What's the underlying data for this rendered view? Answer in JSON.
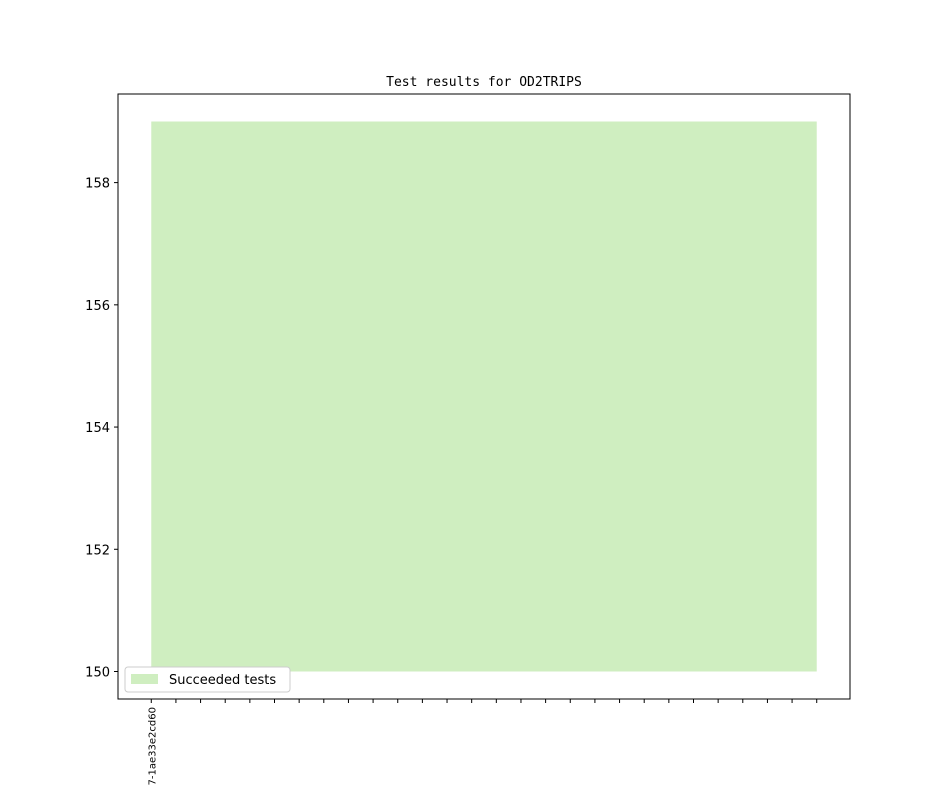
{
  "chart_data": {
    "type": "area",
    "title": "Test results for OD2TRIPS",
    "categories": [
      "7-1ae33e2cd60",
      null,
      null,
      null,
      null,
      null,
      null,
      null,
      null,
      null,
      null,
      null,
      null,
      null,
      null,
      null,
      null,
      null,
      null,
      null,
      null,
      null,
      null,
      null,
      null,
      null,
      null,
      null
    ],
    "series": [
      {
        "name": "Succeeded tests",
        "color": "#cfeec0",
        "base": [
          150,
          150,
          150,
          150,
          150,
          150,
          150,
          150,
          150,
          150,
          150,
          150,
          150,
          150,
          150,
          150,
          150,
          150,
          150,
          150,
          150,
          150,
          150,
          150,
          150,
          150,
          150,
          150
        ],
        "values": [
          159,
          159,
          159,
          159,
          159,
          159,
          159,
          159,
          159,
          159,
          159,
          159,
          159,
          159,
          159,
          159,
          159,
          159,
          159,
          159,
          159,
          159,
          159,
          159,
          159,
          159,
          159,
          159
        ]
      }
    ],
    "ylim": [
      149.55,
      159.45
    ],
    "yticks": [
      150,
      152,
      154,
      156,
      158
    ],
    "legend": "lower left"
  }
}
